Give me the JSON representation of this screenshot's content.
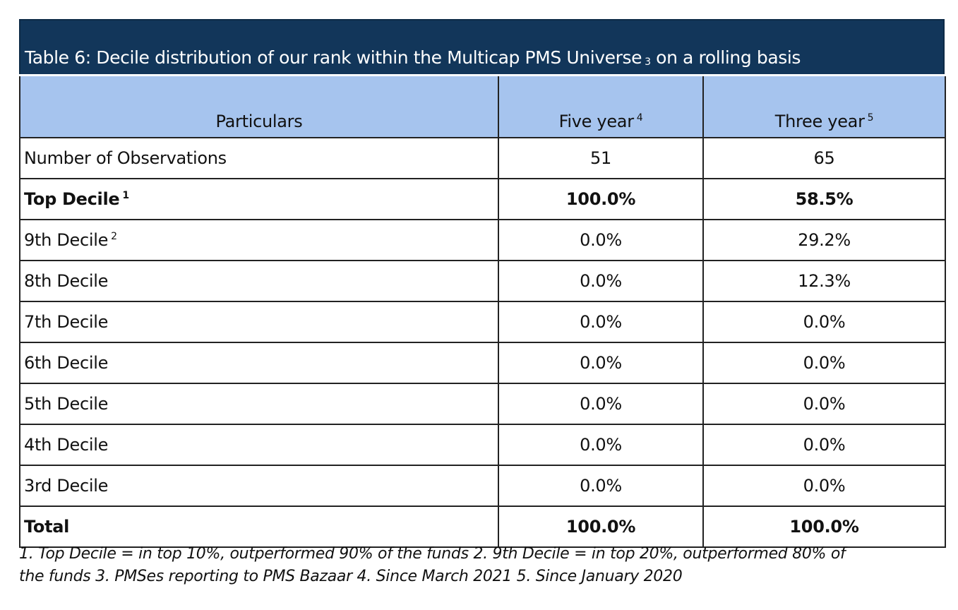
{
  "title": "Table 6: Decile distribution of our rank within the Multicap PMS Universe",
  "title_sup": "3",
  "title_suffix": "on a rolling basis",
  "columns": [
    {
      "label": "Particulars",
      "sup": ""
    },
    {
      "label": "Five year",
      "sup": "4"
    },
    {
      "label": "Three year",
      "sup": "5"
    }
  ],
  "rows": [
    {
      "label": "Number of Observations",
      "sup": "",
      "five": "51",
      "three": "65",
      "bold": false
    },
    {
      "label": "Top Decile",
      "sup": "1",
      "five": "100.0%",
      "three": "58.5%",
      "bold": true
    },
    {
      "label": "9th Decile",
      "sup": "2",
      "five": "0.0%",
      "three": "29.2%",
      "bold": false
    },
    {
      "label": "8th Decile",
      "sup": "",
      "five": "0.0%",
      "three": "12.3%",
      "bold": false
    },
    {
      "label": "7th Decile",
      "sup": "",
      "five": "0.0%",
      "three": "0.0%",
      "bold": false
    },
    {
      "label": "6th Decile",
      "sup": "",
      "five": "0.0%",
      "three": "0.0%",
      "bold": false
    },
    {
      "label": "5th Decile",
      "sup": "",
      "five": "0.0%",
      "three": "0.0%",
      "bold": false
    },
    {
      "label": "4th Decile",
      "sup": "",
      "five": "0.0%",
      "three": "0.0%",
      "bold": false
    },
    {
      "label": "3rd Decile",
      "sup": "",
      "five": "0.0%",
      "three": "0.0%",
      "bold": false
    },
    {
      "label": "Total",
      "sup": "",
      "five": "100.0%",
      "three": "100.0%",
      "bold": true
    }
  ],
  "footnote_line1": "1. Top Decile = in top 10%,  outperformed 90% of the funds 2. 9th Decile = in top 20%, outperformed 80% of",
  "footnote_line2": "the funds 3. PMSes reporting to PMS Bazaar 4. Since March 2021 5. Since January 2020",
  "colors": {
    "title_bg": "#12365a",
    "header_bg": "#a6c4ee"
  }
}
